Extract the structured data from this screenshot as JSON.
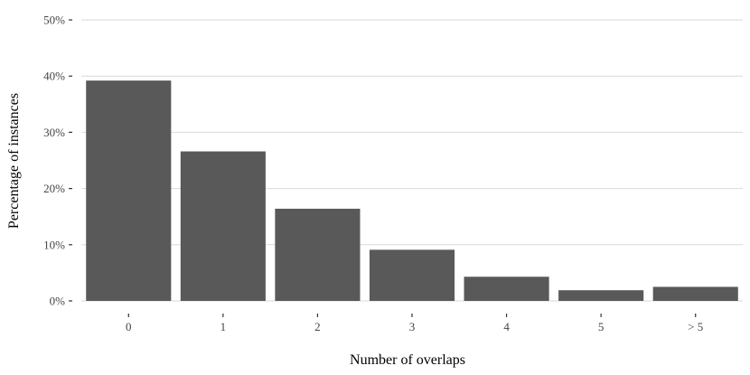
{
  "chart_data": {
    "type": "bar",
    "categories": [
      "0",
      "1",
      "2",
      "3",
      "4",
      "5",
      "> 5"
    ],
    "values": [
      39.2,
      26.6,
      16.4,
      9.1,
      4.3,
      1.9,
      2.5
    ],
    "xlabel": "Number of overlaps",
    "ylabel": "Percentage of instances",
    "ylim": [
      0,
      50
    ],
    "yticks": [
      0,
      10,
      20,
      30,
      40,
      50
    ],
    "ytick_labels": [
      "0%",
      "10%",
      "20%",
      "30%",
      "40%",
      "50%"
    ],
    "grid": true,
    "legend": "none",
    "bar_color": "#595959"
  }
}
